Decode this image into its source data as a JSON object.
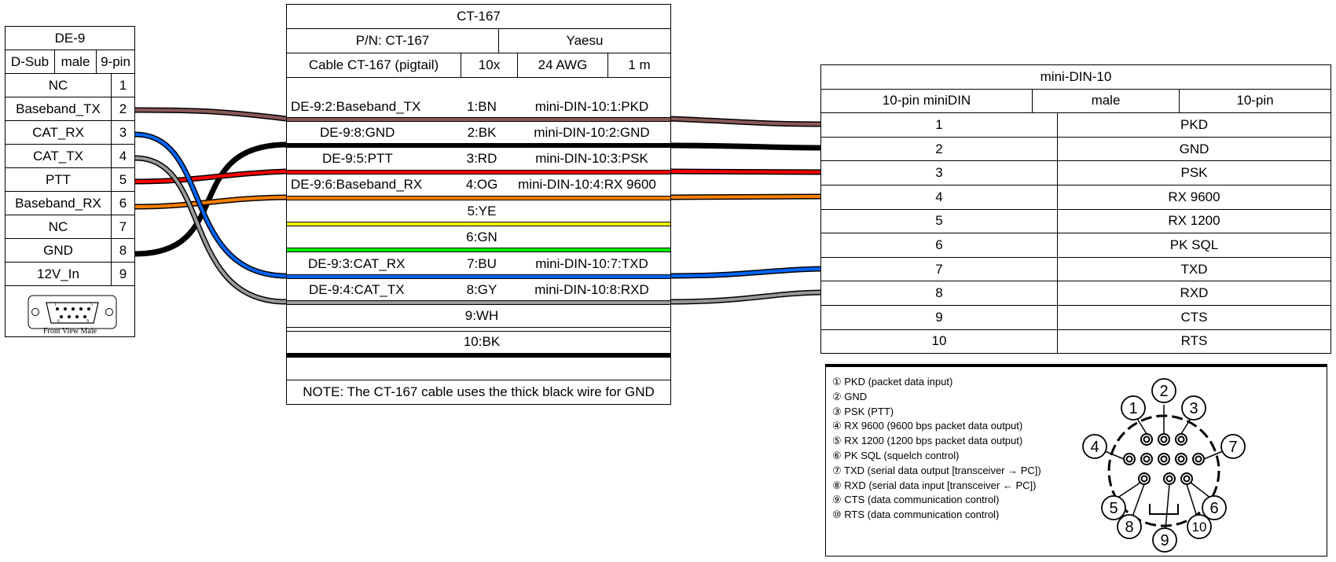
{
  "de9": {
    "title": "DE-9",
    "type": "D-Sub",
    "gender": "male",
    "pincount": "9-pin",
    "pins": [
      {
        "label": "NC",
        "num": "1"
      },
      {
        "label": "Baseband_TX",
        "num": "2"
      },
      {
        "label": "CAT_RX",
        "num": "3"
      },
      {
        "label": "CAT_TX",
        "num": "4"
      },
      {
        "label": "PTT",
        "num": "5"
      },
      {
        "label": "Baseband_RX",
        "num": "6"
      },
      {
        "label": "NC",
        "num": "7"
      },
      {
        "label": "GND",
        "num": "8"
      },
      {
        "label": "12V_In",
        "num": "9"
      }
    ],
    "image_caption": "Front View Male",
    "connector_pins_top": [
      "1",
      "5"
    ],
    "connector_pins_bottom": [
      "6",
      "9"
    ]
  },
  "cable": {
    "title": "CT-167",
    "pn": "P/N: CT-167",
    "manufacturer": "Yaesu",
    "name": "Cable CT-167 (pigtail)",
    "wirecount": "10x",
    "gauge": "24 AWG",
    "length": "1 m",
    "wires": [
      {
        "left": "DE-9:2:Baseband_TX",
        "mid": "1:BN",
        "right": "mini-DIN-10:1:PKD",
        "color": "#895956"
      },
      {
        "left": "DE-9:8:GND",
        "mid": "2:BK",
        "right": "mini-DIN-10:2:GND",
        "color": "#000000"
      },
      {
        "left": "DE-9:5:PTT",
        "mid": "3:RD",
        "right": "mini-DIN-10:3:PSK",
        "color": "#ff0000"
      },
      {
        "left": "DE-9:6:Baseband_RX",
        "mid": "4:OG",
        "right": "mini-DIN-10:4:RX 9600",
        "color": "#ff8000"
      },
      {
        "left": "",
        "mid": "5:YE",
        "right": "",
        "color": "#ffff00"
      },
      {
        "left": "",
        "mid": "6:GN",
        "right": "",
        "color": "#00ff00"
      },
      {
        "left": "DE-9:3:CAT_RX",
        "mid": "7:BU",
        "right": "mini-DIN-10:7:TXD",
        "color": "#0066ff"
      },
      {
        "left": "DE-9:4:CAT_TX",
        "mid": "8:GY",
        "right": "mini-DIN-10:8:RXD",
        "color": "#999999"
      },
      {
        "left": "",
        "mid": "9:WH",
        "right": "",
        "color": "#ffffff"
      },
      {
        "left": "",
        "mid": "10:BK",
        "right": "",
        "color": "#000000"
      }
    ],
    "note": "NOTE: The CT-167 cable uses the thick black wire for GND"
  },
  "minidin": {
    "title": "mini-DIN-10",
    "type": "10-pin miniDIN",
    "gender": "male",
    "pincount": "10-pin",
    "pins": [
      {
        "num": "1",
        "label": "PKD"
      },
      {
        "num": "2",
        "label": "GND"
      },
      {
        "num": "3",
        "label": "PSK"
      },
      {
        "num": "4",
        "label": "RX 9600"
      },
      {
        "num": "5",
        "label": "RX 1200"
      },
      {
        "num": "6",
        "label": "PK SQL"
      },
      {
        "num": "7",
        "label": "TXD"
      },
      {
        "num": "8",
        "label": "RXD"
      },
      {
        "num": "9",
        "label": "CTS"
      },
      {
        "num": "10",
        "label": "RTS"
      }
    ],
    "legend": [
      "① PKD (packet data input)",
      "② GND",
      "③ PSK (PTT)",
      "④ RX 9600 (9600 bps packet data output)",
      "⑤ RX 1200 (1200 bps packet data output)",
      "⑥ PK SQL (squelch control)",
      "⑦ TXD (serial data output [transceiver → PC])",
      "⑧ RXD (serial data input [transceiver ← PC])",
      "⑨ CTS (data communication control)",
      "⑩ RTS (data communication control)"
    ],
    "diagram_numbers": [
      "1",
      "2",
      "3",
      "4",
      "5",
      "6",
      "7",
      "8",
      "9",
      "10"
    ]
  }
}
